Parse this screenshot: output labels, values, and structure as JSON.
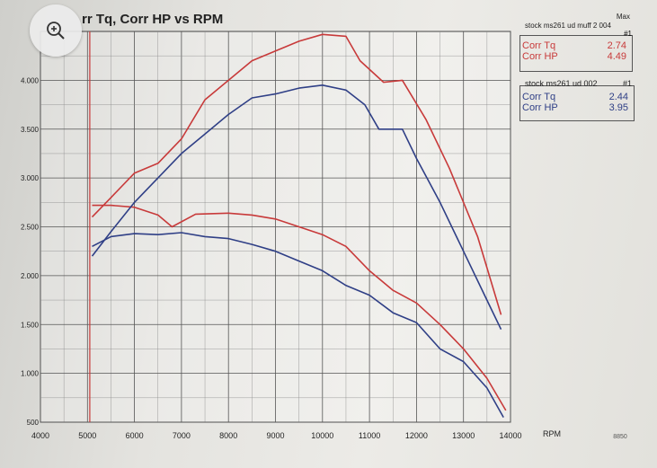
{
  "title": "rr Tq, Corr HP vs RPM",
  "zoom_button": {
    "icon": "zoom-in-icon"
  },
  "legends": [
    {
      "max_label": "Max",
      "name": "stock ms261 ud muff 2 004",
      "run": "#1",
      "color": "#c83a3a",
      "rows": [
        {
          "label": "Corr Tq",
          "value": "2.74"
        },
        {
          "label": "Corr HP",
          "value": "4.49"
        }
      ]
    },
    {
      "name": "stock ms261 ud 002",
      "run": "#1",
      "color": "#2f3f86",
      "rows": [
        {
          "label": "Corr Tq",
          "value": "2.44"
        },
        {
          "label": "Corr HP",
          "value": "3.95"
        }
      ]
    }
  ],
  "chart_data": {
    "type": "line",
    "title": "rr Tq, Corr HP vs RPM",
    "xlabel": "RPM",
    "ylabel": "",
    "xlim": [
      4000,
      14000
    ],
    "ylim": [
      0.5,
      4.5
    ],
    "x_ticks": [
      "4000",
      "5000",
      "6000",
      "7000",
      "8000",
      "9000",
      "10000",
      "11000",
      "12000",
      "13000",
      "14000"
    ],
    "x_extra_label": "8850",
    "y_ticks": [
      "500",
      "1.000",
      "1.500",
      "2.000",
      "2.500",
      "3.000",
      "3.500",
      "4.000"
    ],
    "grid": true,
    "series": [
      {
        "name": "stock ms261 ud muff 2 004 Corr HP",
        "color": "#c83a3a",
        "x": [
          5100,
          5500,
          6000,
          6500,
          7000,
          7500,
          8000,
          8500,
          9000,
          9500,
          10000,
          10500,
          10800,
          11300,
          11700,
          12200,
          12700,
          13300,
          13800
        ],
        "y": [
          2.6,
          2.8,
          3.05,
          3.15,
          3.4,
          3.8,
          4.0,
          4.2,
          4.3,
          4.4,
          4.47,
          4.45,
          4.2,
          3.98,
          4.0,
          3.6,
          3.1,
          2.4,
          1.6
        ]
      },
      {
        "name": "stock ms261 ud muff 2 004 Corr Tq",
        "color": "#c83a3a",
        "x": [
          5100,
          5500,
          6000,
          6500,
          6800,
          7300,
          8000,
          8500,
          9000,
          9500,
          10000,
          10500,
          11000,
          11500,
          12000,
          12500,
          13000,
          13500,
          13900
        ],
        "y": [
          2.72,
          2.72,
          2.7,
          2.62,
          2.5,
          2.63,
          2.64,
          2.62,
          2.58,
          2.5,
          2.42,
          2.3,
          2.05,
          1.85,
          1.72,
          1.5,
          1.25,
          0.95,
          0.62
        ]
      },
      {
        "name": "stock ms261 ud 002 Corr HP",
        "color": "#2f3f86",
        "x": [
          5100,
          5500,
          6000,
          6500,
          7000,
          7500,
          8000,
          8500,
          9000,
          9500,
          10000,
          10500,
          10900,
          11200,
          11700,
          12000,
          12500,
          13000,
          13500,
          13800
        ],
        "y": [
          2.2,
          2.45,
          2.75,
          3.0,
          3.25,
          3.45,
          3.65,
          3.82,
          3.86,
          3.92,
          3.95,
          3.9,
          3.75,
          3.5,
          3.5,
          3.2,
          2.75,
          2.25,
          1.75,
          1.45
        ]
      },
      {
        "name": "stock ms261 ud 002 Corr Tq",
        "color": "#2f3f86",
        "x": [
          5100,
          5500,
          6000,
          6500,
          7000,
          7500,
          8000,
          8500,
          9000,
          9500,
          10000,
          10500,
          11000,
          11500,
          12000,
          12500,
          13000,
          13500,
          13850
        ],
        "y": [
          2.3,
          2.4,
          2.43,
          2.42,
          2.44,
          2.4,
          2.38,
          2.32,
          2.25,
          2.15,
          2.05,
          1.9,
          1.8,
          1.62,
          1.52,
          1.25,
          1.12,
          0.85,
          0.55
        ]
      }
    ]
  }
}
